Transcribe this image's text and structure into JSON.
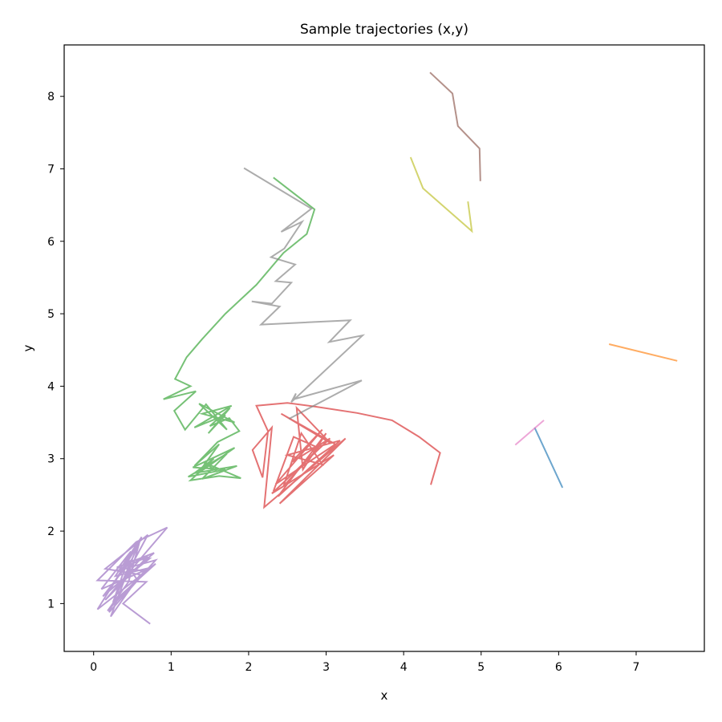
{
  "chart_data": {
    "type": "line",
    "title": "Sample trajectories (x,y)",
    "xlabel": "x",
    "ylabel": "y",
    "xlim": [
      -0.38,
      7.88
    ],
    "ylim": [
      0.34,
      8.71
    ],
    "xticks": [
      0,
      1,
      2,
      3,
      4,
      5,
      6,
      7
    ],
    "yticks": [
      1,
      2,
      3,
      4,
      5,
      6,
      7,
      8
    ],
    "grid": false,
    "legend": "none",
    "series": [
      {
        "color": "#1f77b4",
        "points": [
          [
            5.69,
            3.43
          ],
          [
            6.05,
            2.6
          ]
        ]
      },
      {
        "color": "#ff7f0e",
        "points": [
          [
            6.65,
            4.58
          ],
          [
            7.53,
            4.35
          ]
        ]
      },
      {
        "color": "#2ca02c",
        "points": [
          [
            2.32,
            6.88
          ],
          [
            2.85,
            6.44
          ],
          [
            2.75,
            6.1
          ],
          [
            2.45,
            5.84
          ],
          [
            2.1,
            5.4
          ],
          [
            1.7,
            5.0
          ],
          [
            1.4,
            4.65
          ],
          [
            1.2,
            4.4
          ],
          [
            1.05,
            4.1
          ],
          [
            1.25,
            4.0
          ],
          [
            0.9,
            3.82
          ],
          [
            1.32,
            3.93
          ],
          [
            1.04,
            3.66
          ],
          [
            1.18,
            3.4
          ],
          [
            1.45,
            3.75
          ],
          [
            1.72,
            3.4
          ],
          [
            1.36,
            3.76
          ],
          [
            1.82,
            3.5
          ],
          [
            1.4,
            3.62
          ],
          [
            1.78,
            3.73
          ],
          [
            1.3,
            3.43
          ],
          [
            1.7,
            3.6
          ],
          [
            1.48,
            3.35
          ],
          [
            1.76,
            3.7
          ],
          [
            1.5,
            3.45
          ],
          [
            1.75,
            3.56
          ],
          [
            1.88,
            3.38
          ],
          [
            1.6,
            3.23
          ],
          [
            1.3,
            2.9
          ],
          [
            1.62,
            3.2
          ],
          [
            1.35,
            2.8
          ],
          [
            1.82,
            3.15
          ],
          [
            1.28,
            2.88
          ],
          [
            1.7,
            2.85
          ],
          [
            1.22,
            2.75
          ],
          [
            1.72,
            3.07
          ],
          [
            1.4,
            2.72
          ],
          [
            1.85,
            2.9
          ],
          [
            1.3,
            2.8
          ],
          [
            1.55,
            3.0
          ],
          [
            1.25,
            2.7
          ],
          [
            1.62,
            2.76
          ],
          [
            1.9,
            2.73
          ],
          [
            1.42,
            2.95
          ],
          [
            1.6,
            2.82
          ]
        ]
      },
      {
        "color": "#d62728",
        "points": [
          [
            4.35,
            2.64
          ],
          [
            4.47,
            3.08
          ],
          [
            4.2,
            3.3
          ],
          [
            3.85,
            3.53
          ],
          [
            3.4,
            3.63
          ],
          [
            2.85,
            3.72
          ],
          [
            2.5,
            3.77
          ],
          [
            2.1,
            3.73
          ],
          [
            2.25,
            3.38
          ],
          [
            2.18,
            2.74
          ],
          [
            2.05,
            3.12
          ],
          [
            2.3,
            3.43
          ],
          [
            2.2,
            2.33
          ],
          [
            3.25,
            3.28
          ],
          [
            2.4,
            2.38
          ],
          [
            3.1,
            3.05
          ],
          [
            2.3,
            2.52
          ],
          [
            3.05,
            3.28
          ],
          [
            2.55,
            2.95
          ],
          [
            2.95,
            3.4
          ],
          [
            2.35,
            2.65
          ],
          [
            3.12,
            3.2
          ],
          [
            2.42,
            3.62
          ],
          [
            3.05,
            3.22
          ],
          [
            2.62,
            3.7
          ],
          [
            2.7,
            2.85
          ],
          [
            3.0,
            3.35
          ],
          [
            2.38,
            2.48
          ],
          [
            3.18,
            3.25
          ],
          [
            2.5,
            3.05
          ],
          [
            2.95,
            2.92
          ],
          [
            2.68,
            3.35
          ],
          [
            2.45,
            2.62
          ],
          [
            2.9,
            3.15
          ],
          [
            2.58,
            3.3
          ],
          [
            2.32,
            2.55
          ]
        ]
      },
      {
        "color": "#9467bd",
        "points": [
          [
            0.73,
            0.72
          ],
          [
            0.38,
            1.0
          ],
          [
            0.68,
            1.3
          ],
          [
            0.05,
            1.32
          ],
          [
            0.55,
            1.85
          ],
          [
            0.95,
            2.05
          ],
          [
            0.15,
            1.05
          ],
          [
            0.7,
            1.65
          ],
          [
            0.3,
            1.45
          ],
          [
            0.8,
            1.6
          ],
          [
            0.2,
            0.88
          ],
          [
            0.62,
            1.92
          ],
          [
            0.28,
            1.38
          ],
          [
            0.75,
            1.5
          ],
          [
            0.1,
            1.2
          ],
          [
            0.48,
            1.72
          ],
          [
            0.25,
            1.02
          ],
          [
            0.8,
            1.55
          ],
          [
            0.05,
            0.92
          ],
          [
            0.58,
            1.82
          ],
          [
            0.35,
            1.25
          ],
          [
            0.7,
            1.95
          ],
          [
            0.15,
            1.48
          ],
          [
            0.6,
            1.4
          ],
          [
            0.22,
            0.82
          ],
          [
            0.5,
            1.62
          ],
          [
            0.12,
            1.1
          ],
          [
            0.78,
            1.7
          ],
          [
            0.3,
            1.5
          ],
          [
            0.66,
            1.45
          ],
          [
            0.18,
            0.9
          ],
          [
            0.45,
            1.3
          ],
          [
            0.6,
            1.88
          ],
          [
            0.2,
            1.18
          ],
          [
            0.72,
            1.62
          ],
          [
            0.4,
            1.58
          ],
          [
            0.55,
            1.35
          ]
        ]
      },
      {
        "color": "#8c564b",
        "points": [
          [
            4.34,
            8.33
          ],
          [
            4.63,
            8.04
          ],
          [
            4.7,
            7.59
          ],
          [
            4.98,
            7.28
          ],
          [
            4.99,
            6.83
          ]
        ]
      },
      {
        "color": "#e377c2",
        "points": [
          [
            5.44,
            3.19
          ],
          [
            5.81,
            3.53
          ]
        ]
      },
      {
        "color": "#7f7f7f",
        "points": [
          [
            1.94,
            7.01
          ],
          [
            2.81,
            6.45
          ],
          [
            2.42,
            6.13
          ],
          [
            2.69,
            6.27
          ],
          [
            2.46,
            5.9
          ],
          [
            2.29,
            5.78
          ],
          [
            2.6,
            5.68
          ],
          [
            2.35,
            5.45
          ],
          [
            2.55,
            5.43
          ],
          [
            2.3,
            5.14
          ],
          [
            2.04,
            5.17
          ],
          [
            2.4,
            5.1
          ],
          [
            2.16,
            4.85
          ],
          [
            3.31,
            4.91
          ],
          [
            3.04,
            4.61
          ],
          [
            3.47,
            4.7
          ],
          [
            2.55,
            3.78
          ],
          [
            2.61,
            3.9
          ],
          [
            2.58,
            3.82
          ],
          [
            3.46,
            4.08
          ],
          [
            2.52,
            3.55
          ]
        ]
      },
      {
        "color": "#bcbd22",
        "points": [
          [
            4.09,
            7.16
          ],
          [
            4.25,
            6.73
          ],
          [
            4.88,
            6.14
          ],
          [
            4.83,
            6.55
          ]
        ]
      }
    ]
  }
}
